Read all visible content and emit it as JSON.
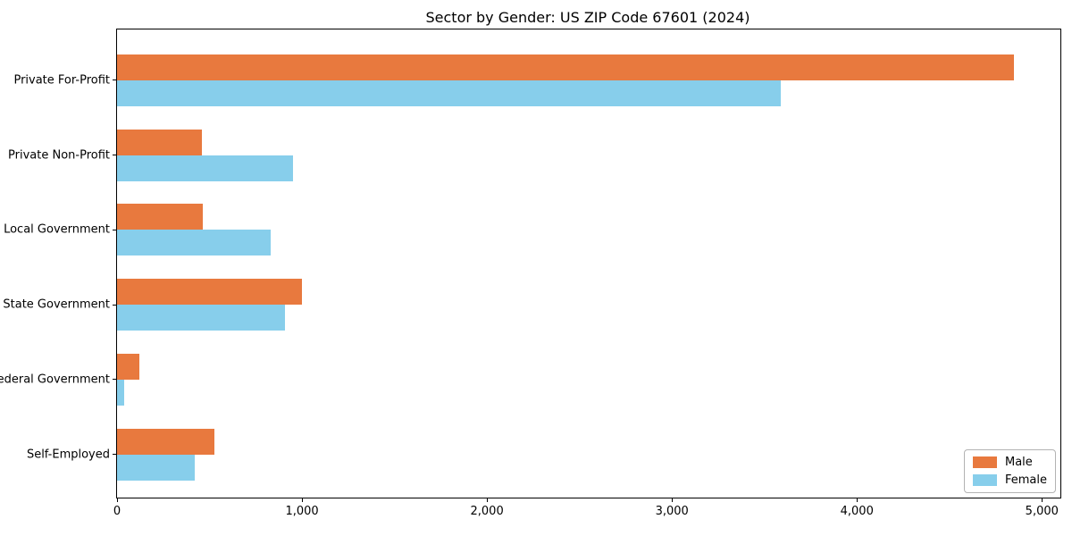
{
  "chart_data": {
    "type": "bar",
    "orientation": "horizontal",
    "title": "Sector by Gender: US ZIP Code 67601 (2024)",
    "categories": [
      "Private For-Profit",
      "Private Non-Profit",
      "Local Government",
      "State Government",
      "Federal Government",
      "Self-Employed"
    ],
    "series": [
      {
        "name": "Male",
        "color": "#e8793e",
        "values": [
          4850,
          460,
          465,
          1000,
          120,
          525
        ]
      },
      {
        "name": "Female",
        "color": "#87ceeb",
        "values": [
          3590,
          950,
          830,
          910,
          40,
          420
        ]
      }
    ],
    "xlabel": "",
    "ylabel": "",
    "xlim": [
      0,
      5100
    ],
    "x_ticks": [
      0,
      1000,
      2000,
      3000,
      4000,
      5000
    ],
    "x_tick_labels": [
      "0",
      "1,000",
      "2,000",
      "3,000",
      "4,000",
      "5,000"
    ],
    "grid": false,
    "legend": {
      "position": "lower-right",
      "entries": [
        "Male",
        "Female"
      ]
    },
    "colors": {
      "male_bar": "#e8793e",
      "female_bar": "#87ceeb",
      "axis": "#000000",
      "legend_border": "#b3b3b3",
      "background": "#ffffff"
    }
  }
}
